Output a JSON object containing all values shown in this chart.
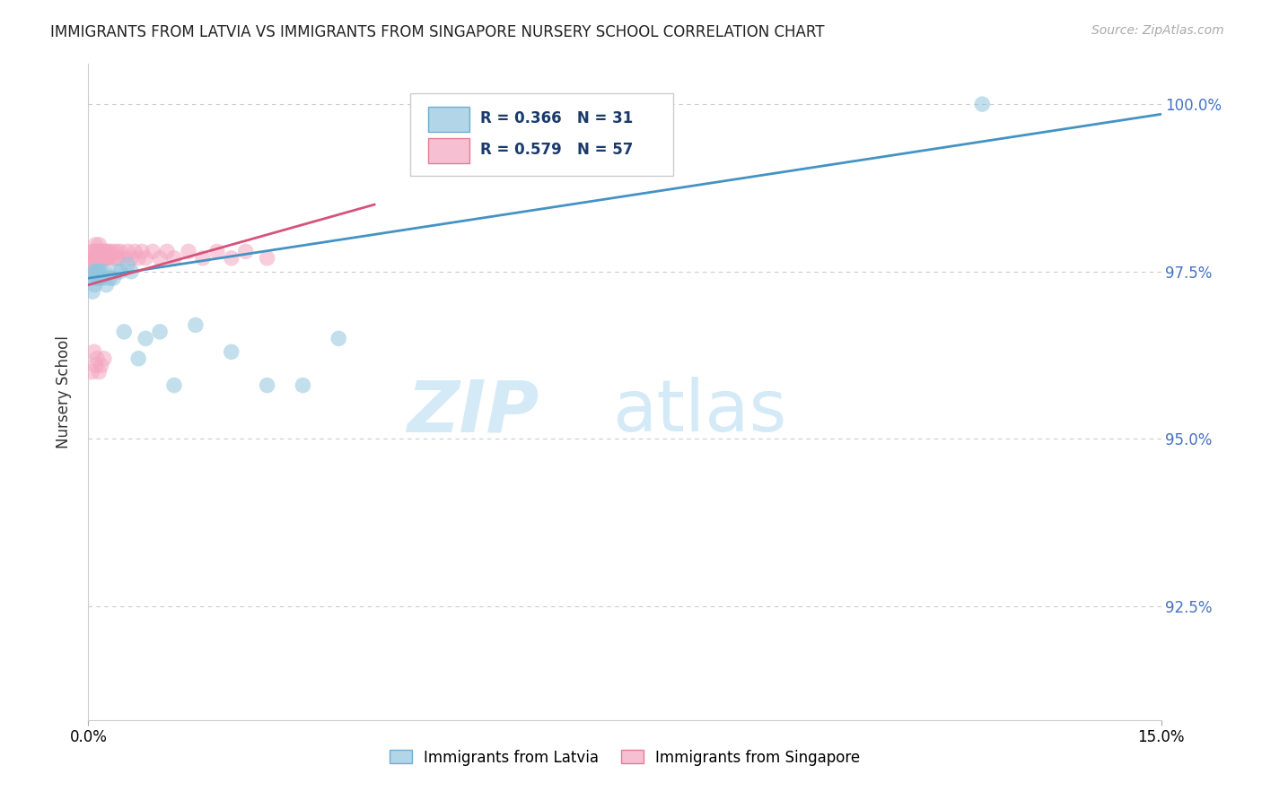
{
  "title": "IMMIGRANTS FROM LATVIA VS IMMIGRANTS FROM SINGAPORE NURSERY SCHOOL CORRELATION CHART",
  "source_text": "Source: ZipAtlas.com",
  "ylabel": "Nursery School",
  "xlim": [
    0.0,
    15.0
  ],
  "ylim": [
    0.908,
    1.006
  ],
  "R_latvia": 0.366,
  "N_latvia": 31,
  "R_singapore": 0.579,
  "N_singapore": 57,
  "color_latvia": "#92c5de",
  "color_singapore": "#f4a6c0",
  "line_color_latvia": "#4393c3",
  "line_color_singapore": "#d6537a",
  "watermark_zip": "ZIP",
  "watermark_atlas": "atlas",
  "legend_latvia": "Immigrants from Latvia",
  "legend_singapore": "Immigrants from Singapore",
  "latvia_x": [
    0.05,
    0.06,
    0.08,
    0.09,
    0.1,
    0.12,
    0.13,
    0.14,
    0.15,
    0.16,
    0.18,
    0.2,
    0.22,
    0.25,
    0.3,
    0.35,
    0.4,
    0.45,
    0.5,
    0.55,
    0.6,
    0.7,
    0.8,
    1.0,
    1.2,
    1.5,
    2.0,
    2.5,
    3.0,
    3.5,
    12.5
  ],
  "latvia_y": [
    0.974,
    0.972,
    0.975,
    0.973,
    0.975,
    0.974,
    0.975,
    0.974,
    0.975,
    0.974,
    0.975,
    0.974,
    0.975,
    0.973,
    0.974,
    0.974,
    0.975,
    0.975,
    0.966,
    0.976,
    0.975,
    0.962,
    0.965,
    0.966,
    0.958,
    0.967,
    0.963,
    0.958,
    0.958,
    0.965,
    1.0
  ],
  "singapore_x": [
    0.03,
    0.04,
    0.05,
    0.06,
    0.07,
    0.08,
    0.09,
    0.1,
    0.11,
    0.12,
    0.13,
    0.14,
    0.15,
    0.16,
    0.17,
    0.18,
    0.19,
    0.2,
    0.21,
    0.22,
    0.23,
    0.24,
    0.25,
    0.26,
    0.27,
    0.28,
    0.3,
    0.32,
    0.35,
    0.38,
    0.4,
    0.42,
    0.45,
    0.5,
    0.55,
    0.6,
    0.65,
    0.7,
    0.75,
    0.8,
    0.9,
    1.0,
    1.1,
    1.2,
    1.4,
    1.6,
    1.8,
    2.0,
    2.2,
    2.5,
    0.05,
    0.08,
    0.1,
    0.12,
    0.15,
    0.18,
    0.22
  ],
  "singapore_y": [
    0.976,
    0.975,
    0.978,
    0.977,
    0.976,
    0.978,
    0.977,
    0.979,
    0.977,
    0.978,
    0.977,
    0.978,
    0.979,
    0.977,
    0.978,
    0.977,
    0.978,
    0.977,
    0.977,
    0.978,
    0.977,
    0.978,
    0.977,
    0.977,
    0.978,
    0.977,
    0.978,
    0.977,
    0.978,
    0.977,
    0.978,
    0.977,
    0.978,
    0.977,
    0.978,
    0.977,
    0.978,
    0.977,
    0.978,
    0.977,
    0.978,
    0.977,
    0.978,
    0.977,
    0.978,
    0.977,
    0.978,
    0.977,
    0.978,
    0.977,
    0.96,
    0.963,
    0.961,
    0.962,
    0.96,
    0.961,
    0.962
  ],
  "ytick_vals": [
    0.925,
    0.95,
    0.975,
    1.0
  ],
  "ytick_labels": [
    "92.5%",
    "95.0%",
    "97.5%",
    "100.0%"
  ]
}
